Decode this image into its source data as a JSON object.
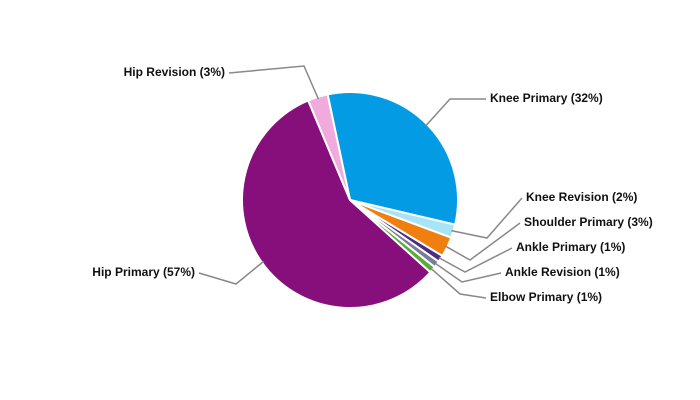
{
  "chart_data": {
    "type": "pie",
    "values": [
      32,
      2,
      3,
      1,
      1,
      1,
      57,
      3
    ],
    "value_labels": [
      "Knee Primary (32%)",
      "Knee Revision (2%)",
      "Shoulder Primary (3%)",
      "Ankle Primary (1%)",
      "Ankle Revision (1%)",
      "Elbow Primary (1%)",
      "Hip Primary (57%)",
      "Hip Revision (3%)"
    ],
    "colors": [
      "#049be5",
      "#a8e4f8",
      "#f07f0f",
      "#4b2d84",
      "#7a7a9a",
      "#5aac3b",
      "#870f7b",
      "#f0aadc"
    ]
  }
}
